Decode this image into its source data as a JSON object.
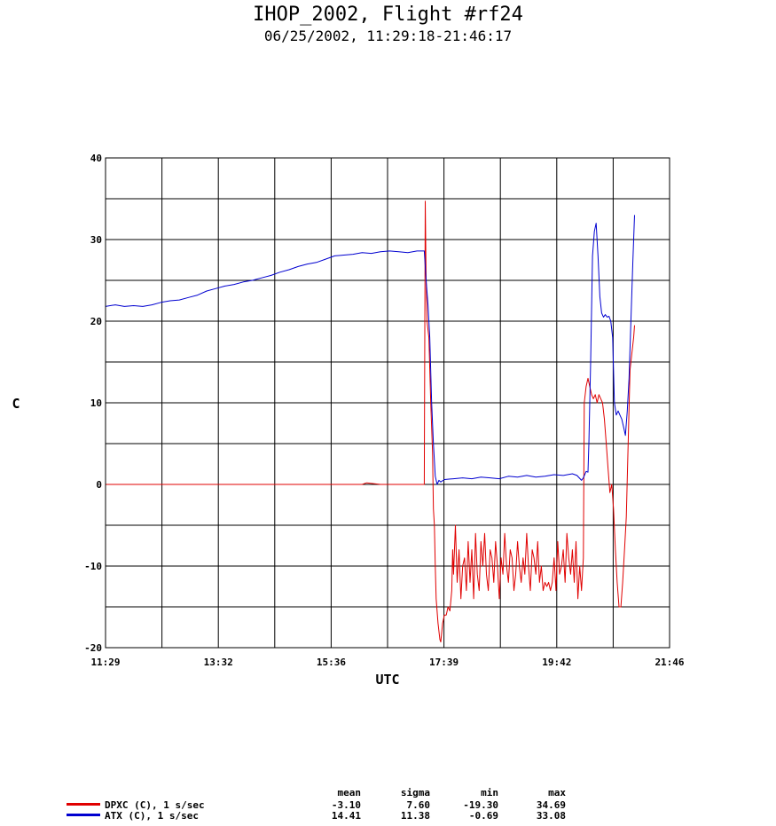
{
  "header": {
    "title": "IHOP_2002, Flight #rf24",
    "subtitle": "06/25/2002, 11:29:18-21:46:17"
  },
  "stats_headers": [
    "mean",
    "sigma",
    "min",
    "max"
  ],
  "legend": [
    {
      "label": "DPXC (C), 1 s/sec",
      "color": "#e00000",
      "mean": "-3.10",
      "sigma": "7.60",
      "min": "-19.30",
      "max": "34.69"
    },
    {
      "label": "ATX (C), 1 s/sec",
      "color": "#0000d0",
      "mean": "14.41",
      "sigma": "11.38",
      "min": "-0.69",
      "max": "33.08"
    }
  ],
  "chart_data": {
    "type": "line",
    "xlabel": "UTC",
    "ylabel": "C",
    "x_tick_labels": [
      "11:29",
      "13:32",
      "15:36",
      "17:39",
      "19:42",
      "21:46"
    ],
    "xlim_minutes_utc": [
      689.3,
      1306.3
    ],
    "ylim": [
      -20,
      40
    ],
    "y_ticks": [
      -20,
      -10,
      0,
      10,
      20,
      30,
      40
    ],
    "grid": true,
    "series": [
      {
        "name": "DPXC (C), 1 s/sec",
        "color": "#e00000",
        "points": [
          [
            689.3,
            0
          ],
          [
            720,
            0
          ],
          [
            760,
            0
          ],
          [
            800,
            0
          ],
          [
            840,
            0
          ],
          [
            880,
            0
          ],
          [
            900,
            0
          ],
          [
            920,
            0
          ],
          [
            950,
            0
          ],
          [
            970,
            0
          ],
          [
            975,
            0.2
          ],
          [
            990,
            0
          ],
          [
            1000,
            0
          ],
          [
            1020,
            0
          ],
          [
            1038,
            0
          ],
          [
            1039,
            34.7
          ],
          [
            1040,
            25
          ],
          [
            1041,
            20
          ],
          [
            1043,
            18
          ],
          [
            1045,
            10
          ],
          [
            1047,
            4
          ],
          [
            1048,
            -3
          ],
          [
            1049,
            -5
          ],
          [
            1050,
            -10
          ],
          [
            1051,
            -14
          ],
          [
            1053,
            -17
          ],
          [
            1055,
            -19
          ],
          [
            1056,
            -19.3
          ],
          [
            1058,
            -17
          ],
          [
            1060,
            -16
          ],
          [
            1062,
            -16
          ],
          [
            1064,
            -15
          ],
          [
            1066,
            -15.5
          ],
          [
            1068,
            -13
          ],
          [
            1069,
            -8
          ],
          [
            1070,
            -11
          ],
          [
            1072,
            -5
          ],
          [
            1074,
            -12
          ],
          [
            1076,
            -8
          ],
          [
            1078,
            -14
          ],
          [
            1080,
            -10
          ],
          [
            1082,
            -9
          ],
          [
            1084,
            -13
          ],
          [
            1086,
            -7
          ],
          [
            1088,
            -12
          ],
          [
            1090,
            -8
          ],
          [
            1092,
            -14
          ],
          [
            1094,
            -6
          ],
          [
            1096,
            -11
          ],
          [
            1098,
            -13
          ],
          [
            1100,
            -7
          ],
          [
            1102,
            -10
          ],
          [
            1104,
            -6
          ],
          [
            1106,
            -11
          ],
          [
            1108,
            -13
          ],
          [
            1110,
            -8
          ],
          [
            1112,
            -9
          ],
          [
            1114,
            -12
          ],
          [
            1116,
            -7
          ],
          [
            1118,
            -10
          ],
          [
            1120,
            -14
          ],
          [
            1122,
            -9
          ],
          [
            1124,
            -11
          ],
          [
            1126,
            -6
          ],
          [
            1128,
            -10
          ],
          [
            1130,
            -12
          ],
          [
            1132,
            -8
          ],
          [
            1134,
            -9
          ],
          [
            1136,
            -13
          ],
          [
            1138,
            -11
          ],
          [
            1140,
            -7
          ],
          [
            1142,
            -10
          ],
          [
            1144,
            -12
          ],
          [
            1146,
            -9
          ],
          [
            1148,
            -11
          ],
          [
            1150,
            -6
          ],
          [
            1152,
            -10
          ],
          [
            1154,
            -13
          ],
          [
            1156,
            -8
          ],
          [
            1158,
            -9
          ],
          [
            1160,
            -11
          ],
          [
            1162,
            -7
          ],
          [
            1164,
            -12
          ],
          [
            1166,
            -10
          ],
          [
            1168,
            -13
          ],
          [
            1170,
            -12
          ],
          [
            1172,
            -12.5
          ],
          [
            1174,
            -12
          ],
          [
            1176,
            -13
          ],
          [
            1178,
            -12
          ],
          [
            1180,
            -9
          ],
          [
            1182,
            -13
          ],
          [
            1184,
            -7
          ],
          [
            1186,
            -11
          ],
          [
            1188,
            -10
          ],
          [
            1190,
            -8
          ],
          [
            1192,
            -12
          ],
          [
            1194,
            -6
          ],
          [
            1196,
            -9
          ],
          [
            1198,
            -11
          ],
          [
            1200,
            -8
          ],
          [
            1202,
            -12
          ],
          [
            1204,
            -7
          ],
          [
            1206,
            -14
          ],
          [
            1208,
            -10
          ],
          [
            1210,
            -13
          ],
          [
            1212,
            -9
          ],
          [
            1213,
            10
          ],
          [
            1215,
            12
          ],
          [
            1217,
            13
          ],
          [
            1219,
            12
          ],
          [
            1221,
            11
          ],
          [
            1223,
            10.5
          ],
          [
            1225,
            11
          ],
          [
            1227,
            10
          ],
          [
            1229,
            11
          ],
          [
            1231,
            10.5
          ],
          [
            1233,
            10
          ],
          [
            1235,
            8
          ],
          [
            1237,
            5
          ],
          [
            1239,
            2
          ],
          [
            1241,
            -1
          ],
          [
            1243,
            0
          ],
          [
            1245,
            -3
          ],
          [
            1247,
            -8
          ],
          [
            1249,
            -12
          ],
          [
            1251,
            -15
          ],
          [
            1253,
            -15
          ],
          [
            1255,
            -12
          ],
          [
            1257,
            -8
          ],
          [
            1259,
            -4
          ],
          [
            1261,
            5
          ],
          [
            1263,
            14
          ],
          [
            1265,
            16
          ],
          [
            1267,
            18
          ],
          [
            1268,
            19.5
          ]
        ]
      },
      {
        "name": "ATX (C), 1 s/sec",
        "color": "#0000d0",
        "points": [
          [
            689.3,
            21.8
          ],
          [
            700,
            22
          ],
          [
            710,
            21.8
          ],
          [
            720,
            21.9
          ],
          [
            730,
            21.8
          ],
          [
            740,
            22
          ],
          [
            750,
            22.3
          ],
          [
            760,
            22.5
          ],
          [
            770,
            22.6
          ],
          [
            780,
            22.9
          ],
          [
            790,
            23.2
          ],
          [
            800,
            23.7
          ],
          [
            810,
            24
          ],
          [
            820,
            24.3
          ],
          [
            830,
            24.5
          ],
          [
            840,
            24.8
          ],
          [
            850,
            25
          ],
          [
            860,
            25.3
          ],
          [
            870,
            25.6
          ],
          [
            880,
            26
          ],
          [
            890,
            26.3
          ],
          [
            900,
            26.7
          ],
          [
            910,
            27
          ],
          [
            920,
            27.2
          ],
          [
            930,
            27.6
          ],
          [
            940,
            28
          ],
          [
            950,
            28.1
          ],
          [
            960,
            28.2
          ],
          [
            970,
            28.4
          ],
          [
            980,
            28.3
          ],
          [
            990,
            28.5
          ],
          [
            1000,
            28.6
          ],
          [
            1010,
            28.5
          ],
          [
            1020,
            28.4
          ],
          [
            1030,
            28.6
          ],
          [
            1038,
            28.6
          ],
          [
            1040,
            25
          ],
          [
            1042,
            22
          ],
          [
            1044,
            18
          ],
          [
            1046,
            10
          ],
          [
            1048,
            5
          ],
          [
            1050,
            1
          ],
          [
            1052,
            0
          ],
          [
            1054,
            0.5
          ],
          [
            1056,
            0.3
          ],
          [
            1060,
            0.6
          ],
          [
            1070,
            0.7
          ],
          [
            1080,
            0.8
          ],
          [
            1090,
            0.7
          ],
          [
            1100,
            0.9
          ],
          [
            1110,
            0.8
          ],
          [
            1120,
            0.7
          ],
          [
            1130,
            1
          ],
          [
            1140,
            0.9
          ],
          [
            1150,
            1.1
          ],
          [
            1160,
            0.9
          ],
          [
            1170,
            1
          ],
          [
            1180,
            1.2
          ],
          [
            1190,
            1.1
          ],
          [
            1200,
            1.3
          ],
          [
            1205,
            1.1
          ],
          [
            1210,
            0.5
          ],
          [
            1212,
            0.8
          ],
          [
            1215,
            1.6
          ],
          [
            1217,
            1.5
          ],
          [
            1218,
            5
          ],
          [
            1220,
            15
          ],
          [
            1222,
            28
          ],
          [
            1224,
            31
          ],
          [
            1226,
            32
          ],
          [
            1228,
            28
          ],
          [
            1230,
            23
          ],
          [
            1232,
            21
          ],
          [
            1234,
            20.5
          ],
          [
            1236,
            20.8
          ],
          [
            1238,
            20.5
          ],
          [
            1240,
            20.6
          ],
          [
            1242,
            20
          ],
          [
            1244,
            18
          ],
          [
            1246,
            10
          ],
          [
            1248,
            8.5
          ],
          [
            1250,
            9
          ],
          [
            1252,
            8.5
          ],
          [
            1254,
            8
          ],
          [
            1256,
            7
          ],
          [
            1258,
            6
          ],
          [
            1260,
            9
          ],
          [
            1262,
            13
          ],
          [
            1264,
            20
          ],
          [
            1266,
            27
          ],
          [
            1268,
            33
          ]
        ]
      }
    ]
  }
}
